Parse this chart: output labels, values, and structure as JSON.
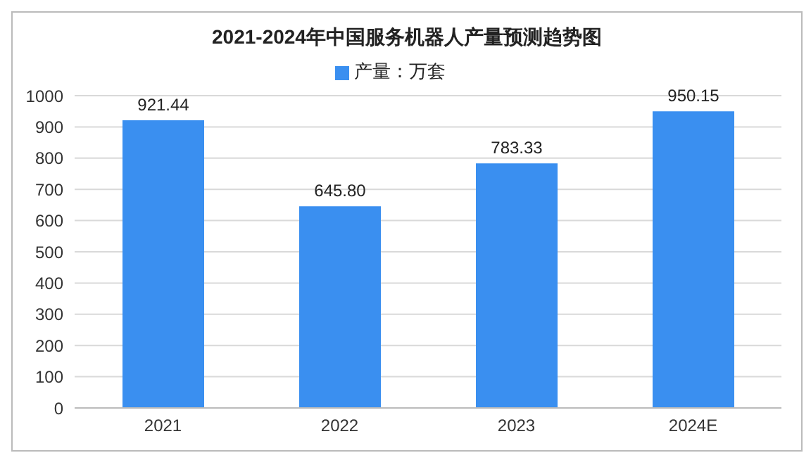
{
  "chart_data": {
    "type": "bar",
    "title": "2021-2024年中国服务机器人产量预测趋势图",
    "categories": [
      "2021",
      "2022",
      "2023",
      "2024E"
    ],
    "series": [
      {
        "name": "产量：万套",
        "color": "#3a8ff0",
        "values": [
          921.44,
          645.8,
          783.33,
          950.15
        ],
        "value_labels": [
          "921.44",
          "645.80",
          "783.33",
          "950.15"
        ]
      }
    ],
    "ylim": [
      0,
      1000
    ],
    "yticks": [
      0,
      100,
      200,
      300,
      400,
      500,
      600,
      700,
      800,
      900,
      1000
    ],
    "grid": "y",
    "legend": "top"
  }
}
